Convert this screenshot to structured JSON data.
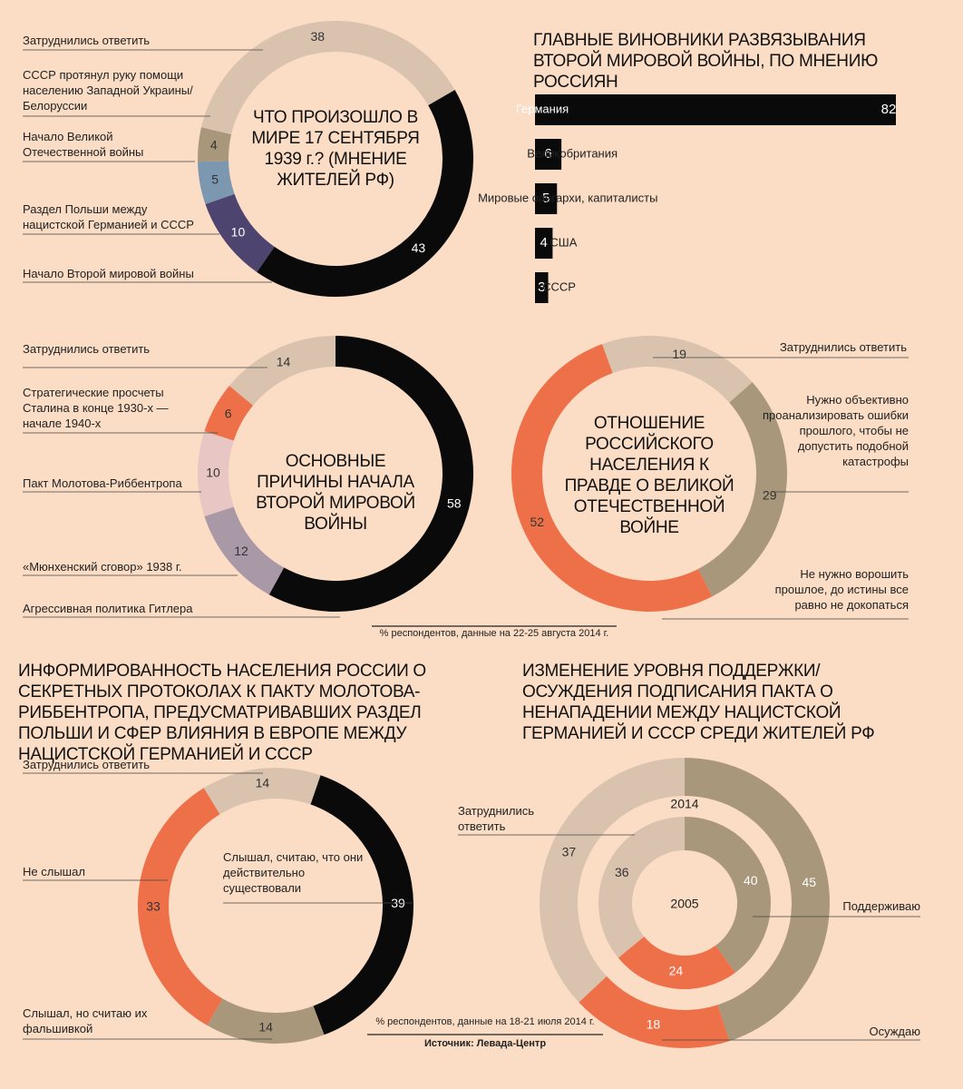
{
  "chart_data": [
    {
      "type": "donut",
      "title": "ЧТО ПРОИЗОШЛО В МИРЕ 17 СЕНТЯБРЯ 1939 г.? (МНЕНИЕ ЖИТЕЛЕЙ РФ)",
      "categories": [
        "Начало Второй мировой войны",
        "Раздел Польши между нацистской Германией и СССР",
        "Начало Великой Отечественной войны",
        "СССР протянул руку помощи населению Западной Украины/Белоруссии",
        "Затруднились ответить"
      ],
      "values": [
        43,
        10,
        5,
        4,
        38
      ],
      "colors": [
        "#0a0a0a",
        "#4e4470",
        "#7b98b0",
        "#a8977a",
        "#dac3ae"
      ]
    },
    {
      "type": "bar",
      "title": "ГЛАВНЫЕ ВИНОВНИКИ РАЗВЯЗЫВАНИЯ ВТОРОЙ МИРОВОЙ ВОЙНЫ, ПО МНЕНИЮ РОССИЯН",
      "categories": [
        "Германия",
        "Великобритания",
        "Мировые олигархи, капиталисты",
        "США",
        "СССР"
      ],
      "values": [
        82,
        6,
        5,
        4,
        3
      ],
      "color": "#0a0a0a"
    },
    {
      "type": "donut",
      "title": "ОСНОВНЫЕ ПРИЧИНЫ НАЧАЛА ВТОРОЙ МИРОВОЙ ВОЙНЫ",
      "categories": [
        "Агрессивная политика Гитлера",
        "«Мюнхенский сговор» 1938 г.",
        "Пакт Молотова-Риббентропа",
        "Стратегические просчеты Сталина в конце 1930-х — начале 1940-х",
        "Затруднились ответить"
      ],
      "values": [
        58,
        12,
        10,
        6,
        14
      ],
      "colors": [
        "#0a0a0a",
        "#a999a6",
        "#e8c6c4",
        "#ee7049",
        "#dac3ae"
      ]
    },
    {
      "type": "donut",
      "title": "ОТНОШЕНИЕ РОССИЙСКОГО НАСЕЛЕНИЯ К ПРАВДЕ О ВЕЛИКОЙ ОТЕЧЕСТВЕННОЙ ВОЙНЕ",
      "categories": [
        "Затруднились ответить",
        "Нужно объективно проанализировать ошибки прошлого, чтобы не допустить подобной катастрофы",
        "Не нужно ворошить прошлое, до истины все равно не докопаться"
      ],
      "values": [
        19,
        29,
        52
      ],
      "colors": [
        "#dac3ae",
        "#a8977a",
        "#ee7049"
      ],
      "note": "% респондентов, данные на 22-25 августа 2014 г."
    },
    {
      "type": "donut",
      "title": "ИНФОРМИРОВАННОСТЬ НАСЕЛЕНИЯ РОССИИ О СЕКРЕТНЫХ ПРОТОКОЛАХ К ПАКТУ МОЛОТОВА-РИББЕНТРОПА, ПРЕДУСМАТРИВАВШИХ РАЗДЕЛ ПОЛЬШИ И СФЕР ВЛИЯНИЯ В ЕВРОПЕ МЕЖДУ НАЦИСТСКОЙ ГЕРМАНИЕЙ И СССР",
      "categories": [
        "Слышал, считаю, что они действительно существовали",
        "Слышал, но считаю их фальшивкой",
        "Не слышал",
        "Затруднились ответить"
      ],
      "values": [
        39,
        14,
        33,
        14
      ],
      "colors": [
        "#0a0a0a",
        "#a8977a",
        "#ee7049",
        "#dac3ae"
      ],
      "note": "% респондентов, данные на 18-21 июля 2014 г.",
      "source": "Источник: Левада-Центр"
    },
    {
      "type": "nested-donut",
      "title": "ИЗМЕНЕНИЕ УРОВНЯ ПОДДЕРЖКИ/ОСУЖДЕНИЯ ПОДПИСАНИЯ ПАКТА О НЕНАПАДЕНИИ МЕЖДУ НАЦИСТСКОЙ ГЕРМАНИЕЙ И СССР СРЕДИ ЖИТЕЛЕЙ РФ",
      "categories": [
        "Поддерживаю",
        "Осуждаю",
        "Затруднились ответить"
      ],
      "colors": [
        "#a8977a",
        "#ee7049",
        "#dac3ae"
      ],
      "series": [
        {
          "name": "2014",
          "values": [
            45,
            18,
            37
          ]
        },
        {
          "name": "2005",
          "values": [
            40,
            24,
            36
          ]
        }
      ]
    }
  ]
}
